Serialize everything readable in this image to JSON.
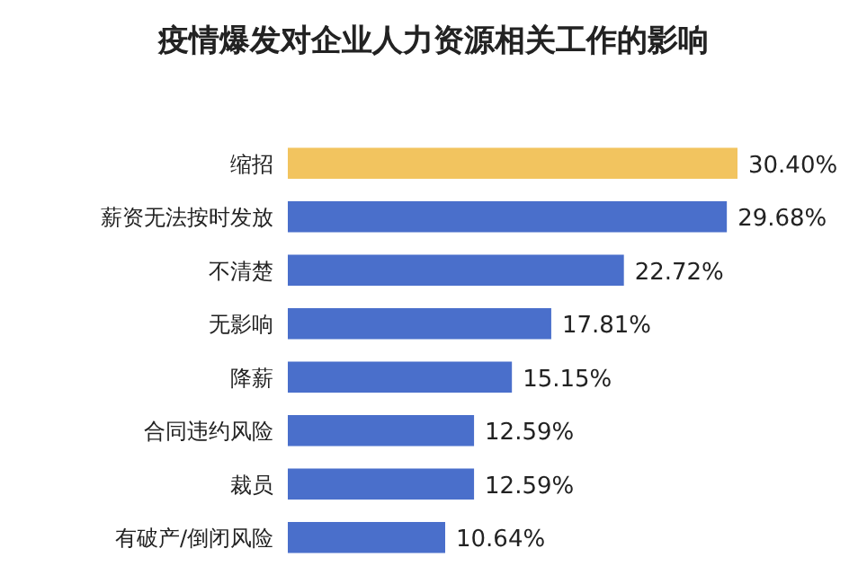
{
  "chart_data": {
    "type": "bar",
    "orientation": "horizontal",
    "title": "疫情爆发对企业人力资源相关工作的影响",
    "categories": [
      "缩招",
      "薪资无法按时发放",
      "不清楚",
      "无影响",
      "降薪",
      "合同违约风险",
      "裁员",
      "有破产/倒闭风险"
    ],
    "values": [
      30.4,
      29.68,
      22.72,
      17.81,
      15.15,
      12.59,
      12.59,
      10.64
    ],
    "colors": [
      "#f2c45f",
      "#4a6fcb",
      "#4a6fcb",
      "#4a6fcb",
      "#4a6fcb",
      "#4a6fcb",
      "#4a6fcb",
      "#4a6fcb"
    ],
    "value_labels": [
      "30.40%",
      "29.68%",
      "22.72%",
      "17.81%",
      "15.15%",
      "12.59%",
      "12.59%",
      "10.64%"
    ]
  }
}
